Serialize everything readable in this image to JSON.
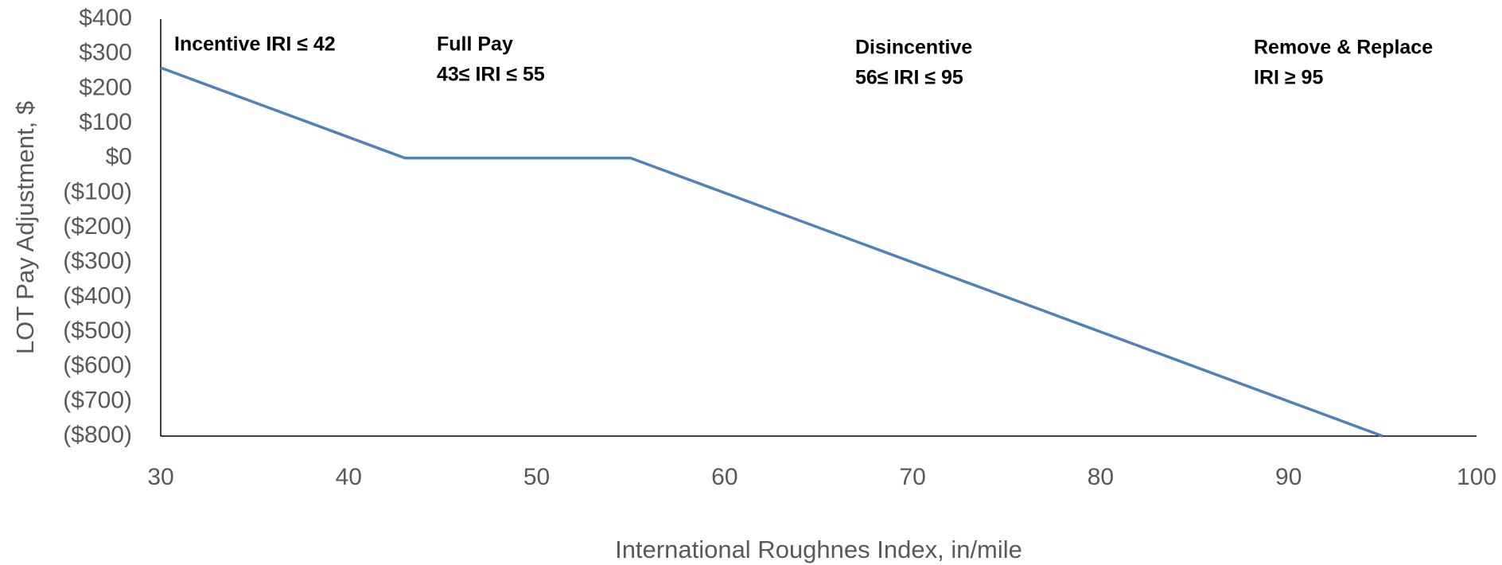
{
  "chart_data": {
    "type": "line",
    "y_label": "LOT Pay Adjustment, $",
    "x_label": "International Roughnes Index, in/mile",
    "x": [
      30,
      42,
      43,
      55,
      56,
      95
    ],
    "series": [
      {
        "name": "LOT Pay Adjustment",
        "color": "#4f81bd",
        "values": [
          260,
          20,
          0,
          0,
          -20,
          -800
        ]
      }
    ],
    "xlim": [
      30,
      100
    ],
    "xticks": [
      30,
      40,
      50,
      60,
      70,
      80,
      90,
      100
    ],
    "ylim": [
      -800,
      400
    ],
    "yticks": [
      {
        "value": -800,
        "label": "($800)"
      },
      {
        "value": -700,
        "label": "($700)"
      },
      {
        "value": -600,
        "label": "($600)"
      },
      {
        "value": -500,
        "label": "($500)"
      },
      {
        "value": -400,
        "label": "($400)"
      },
      {
        "value": -300,
        "label": "($300)"
      },
      {
        "value": -200,
        "label": "($200)"
      },
      {
        "value": -100,
        "label": "($100)"
      },
      {
        "value": 0,
        "label": "$0"
      },
      {
        "value": 100,
        "label": "$100"
      },
      {
        "value": 200,
        "label": "$200"
      },
      {
        "value": 300,
        "label": "$300"
      },
      {
        "value": 400,
        "label": "$400"
      }
    ],
    "annotations": [
      [
        "Incentive IRI ≤ 42"
      ],
      [
        "Full Pay",
        "43≤ IRI ≤ 55"
      ],
      [
        "Disincentive",
        "56≤ IRI ≤ 95"
      ],
      [
        "Remove & Replace",
        "IRI ≥ 95"
      ]
    ]
  }
}
